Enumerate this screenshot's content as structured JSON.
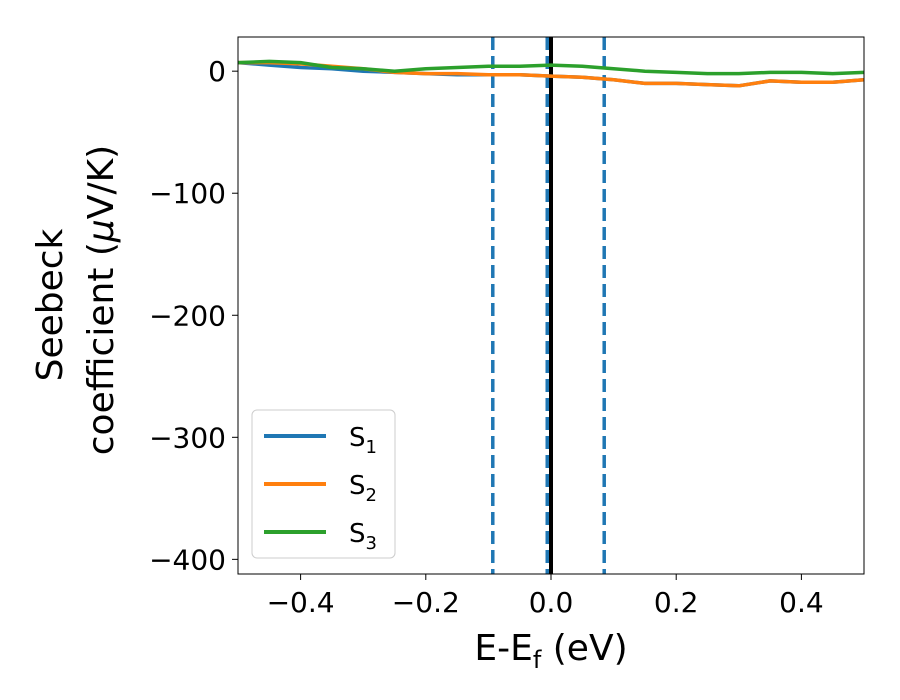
{
  "chart_data": {
    "type": "line",
    "xlabel": "E-E",
    "xlabel_sub": "f",
    "xlabel_unit": " (eV)",
    "ylabel_line1": "Seebeck",
    "ylabel_line2_prefix": "coefficient  (",
    "ylabel_mu": "μ",
    "ylabel_line2_suffix": "V/K)",
    "xlim": [
      -0.5,
      0.5
    ],
    "ylim": [
      -412,
      28
    ],
    "xticks": [
      -0.4,
      -0.2,
      0.0,
      0.2,
      0.4
    ],
    "xtick_labels": [
      "−0.4",
      "−0.2",
      "0.0",
      "0.2",
      "0.4"
    ],
    "yticks": [
      0,
      -100,
      -200,
      -300,
      -400
    ],
    "ytick_labels": [
      "0",
      "−100",
      "−200",
      "−300",
      "−400"
    ],
    "grid": false,
    "legend_position": "lower-left",
    "vertical_lines": [
      {
        "x": -0.093,
        "style": "dashed",
        "color": "#1f77b4"
      },
      {
        "x": -0.006,
        "style": "dashed",
        "color": "#1f77b4"
      },
      {
        "x": 0.0,
        "style": "solid",
        "color": "#000000"
      },
      {
        "x": 0.085,
        "style": "dashed",
        "color": "#1f77b4"
      }
    ],
    "series": [
      {
        "name": "S",
        "sub": "1",
        "color": "#1f77b4",
        "x": [
          -0.5,
          -0.45,
          -0.4,
          -0.35,
          -0.3,
          -0.25,
          -0.2,
          -0.15,
          -0.1,
          -0.05,
          0.0,
          0.05,
          0.1,
          0.15,
          0.2,
          0.25,
          0.3,
          0.35,
          0.4,
          0.45,
          0.5
        ],
        "y": [
          7,
          5,
          3,
          2,
          0,
          -1,
          -2,
          -3,
          -3,
          -3,
          -4,
          -5,
          -7,
          -10,
          -10,
          -11,
          -12,
          -8,
          -9,
          -9,
          -7
        ]
      },
      {
        "name": "S",
        "sub": "2",
        "color": "#ff7f0e",
        "x": [
          -0.5,
          -0.45,
          -0.4,
          -0.35,
          -0.3,
          -0.25,
          -0.2,
          -0.15,
          -0.1,
          -0.05,
          0.0,
          0.05,
          0.1,
          0.15,
          0.2,
          0.25,
          0.3,
          0.35,
          0.4,
          0.45,
          0.5
        ],
        "y": [
          7,
          7,
          6,
          4,
          2,
          -1,
          -2,
          -2,
          -3,
          -3,
          -4,
          -5,
          -7,
          -10,
          -10,
          -11,
          -12,
          -8,
          -9,
          -9,
          -7
        ]
      },
      {
        "name": "S",
        "sub": "3",
        "color": "#2ca02c",
        "x": [
          -0.5,
          -0.45,
          -0.4,
          -0.35,
          -0.3,
          -0.25,
          -0.2,
          -0.15,
          -0.1,
          -0.05,
          0.0,
          0.05,
          0.1,
          0.15,
          0.2,
          0.25,
          0.3,
          0.35,
          0.4,
          0.45,
          0.5
        ],
        "y": [
          7,
          8,
          7,
          3,
          2,
          0,
          2,
          3,
          4,
          4,
          5,
          4,
          2,
          0,
          -1,
          -2,
          -2,
          -1,
          -1,
          -2,
          -1
        ]
      }
    ]
  }
}
